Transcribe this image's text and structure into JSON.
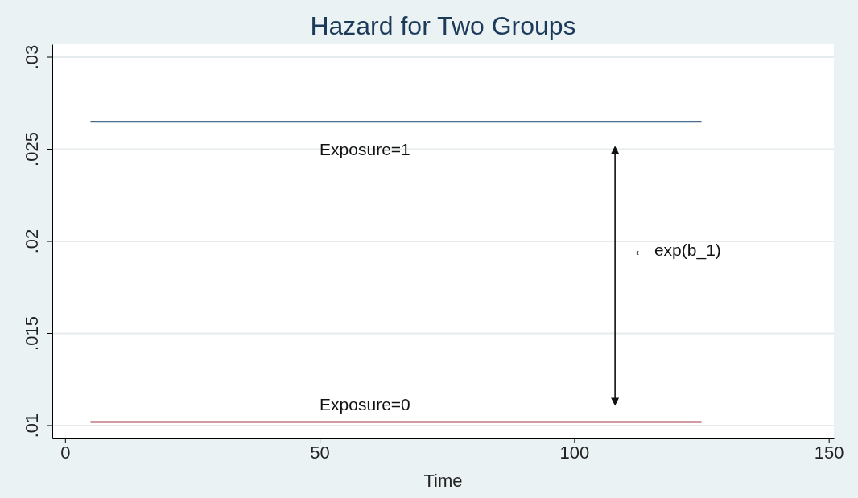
{
  "chart_data": {
    "type": "line",
    "title": "Hazard for Two Groups",
    "xlabel": "Time",
    "series": [
      {
        "name": "Exposure=1",
        "color": "#4a6d8c",
        "values": [
          0.0265,
          0.0265
        ]
      },
      {
        "name": "Exposure=0",
        "color": "#a33a44",
        "values": [
          0.0102,
          0.0102
        ]
      }
    ],
    "x": [
      5,
      125
    ],
    "annotations": [
      "← exp(b_1)"
    ],
    "xlim": [
      -2.5,
      151
    ],
    "xticks": [
      0,
      50,
      100,
      150
    ],
    "ylim": [
      0.0093,
      0.0307
    ],
    "yticks": [
      {
        "value": 0.01,
        "label": ".01"
      },
      {
        "value": 0.015,
        "label": ".015"
      },
      {
        "value": 0.02,
        "label": ".02"
      },
      {
        "value": 0.025,
        "label": ".025"
      },
      {
        "value": 0.03,
        "label": ".03"
      }
    ],
    "grid": "y",
    "line_style": "solid",
    "marker": "none",
    "legend": false
  }
}
